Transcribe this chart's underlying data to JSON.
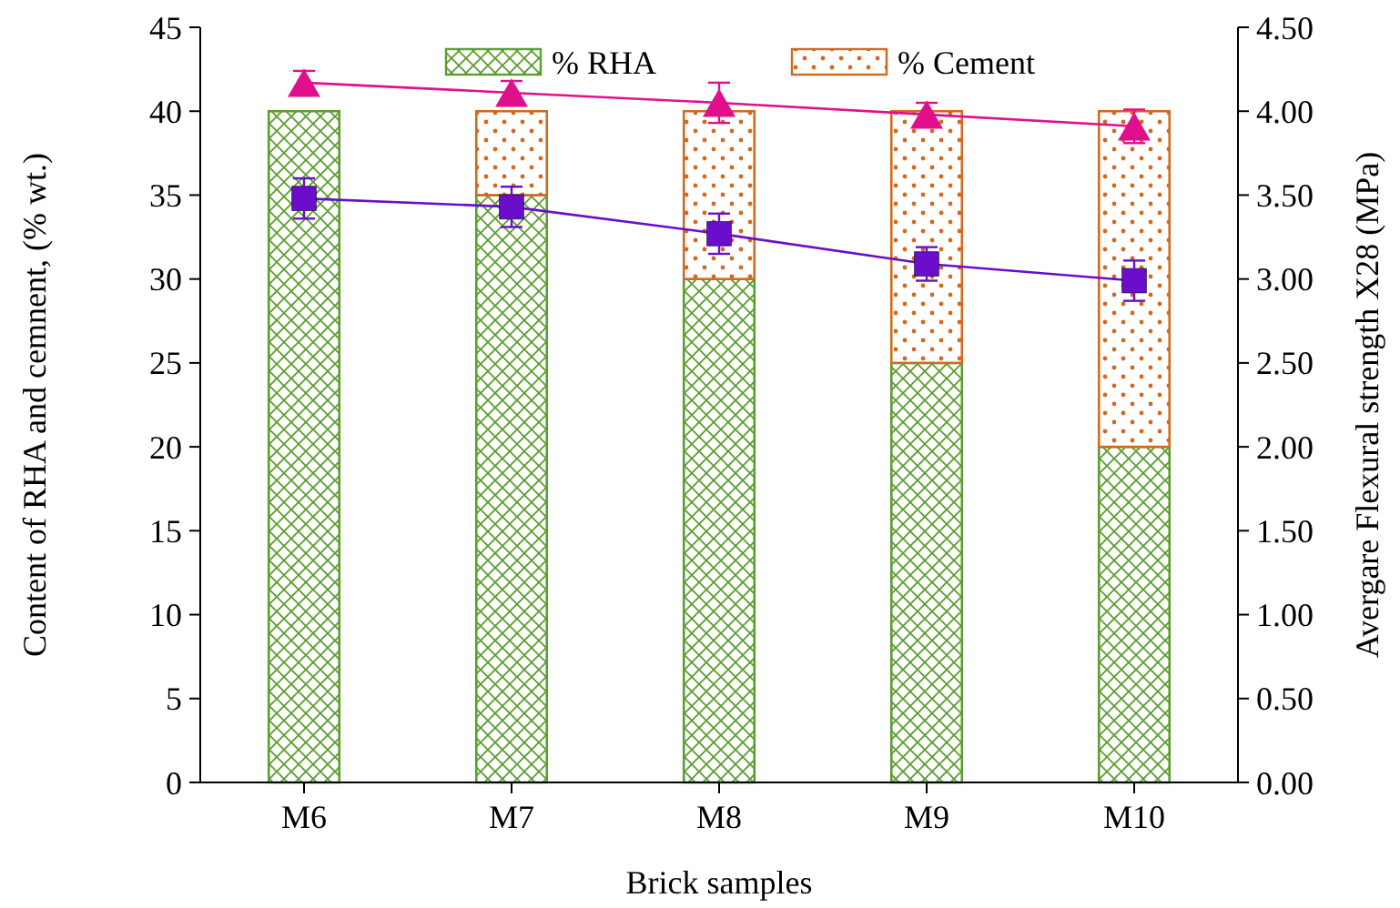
{
  "chart_data": {
    "type": "bar",
    "stacked": true,
    "xlabel": "Brick samples",
    "ylabel": "Content of RHA and cemnent,  (% wt.)",
    "y2label": "Avergare Flexural strength  X28 (MPa)",
    "categories": [
      "M6",
      "M7",
      "M8",
      "M9",
      "M10"
    ],
    "series": [
      {
        "name": "% RHA",
        "color": "#5a9e2f",
        "values": [
          40,
          35,
          30,
          25,
          20
        ]
      },
      {
        "name": "% Cement",
        "color": "#d2691e",
        "values": [
          0,
          5,
          10,
          15,
          20
        ]
      },
      {
        "type": "line",
        "axis": "y2",
        "marker": "triangle",
        "color": "#e0108c",
        "values": [
          4.17,
          4.11,
          4.05,
          3.98,
          3.91
        ],
        "errors": [
          0.07,
          0.07,
          0.12,
          0.07,
          0.1
        ]
      },
      {
        "type": "line",
        "axis": "y2",
        "marker": "square",
        "color": "#6a0dcc",
        "values": [
          3.48,
          3.43,
          3.27,
          3.09,
          2.99
        ],
        "errors": [
          0.12,
          0.12,
          0.12,
          0.1,
          0.12
        ]
      }
    ],
    "ylim": [
      0,
      45
    ],
    "yticks": [
      0,
      5,
      10,
      15,
      20,
      25,
      30,
      35,
      40,
      45
    ],
    "y2lim": [
      0,
      4.5
    ],
    "y2ticks": [
      {
        "value": 0,
        "label": "0.00"
      },
      {
        "value": 0.5,
        "label": "0.50"
      },
      {
        "value": 1,
        "label": "1.00"
      },
      {
        "value": 1.5,
        "label": "1.50"
      },
      {
        "value": 2,
        "label": "2.00"
      },
      {
        "value": 2.5,
        "label": "2.50"
      },
      {
        "value": 3,
        "label": "3.00"
      },
      {
        "value": 3.5,
        "label": "3.50"
      },
      {
        "value": 4,
        "label": "4.00"
      },
      {
        "value": 4.5,
        "label": "4.50"
      }
    ],
    "legend": "top",
    "grid": false
  }
}
